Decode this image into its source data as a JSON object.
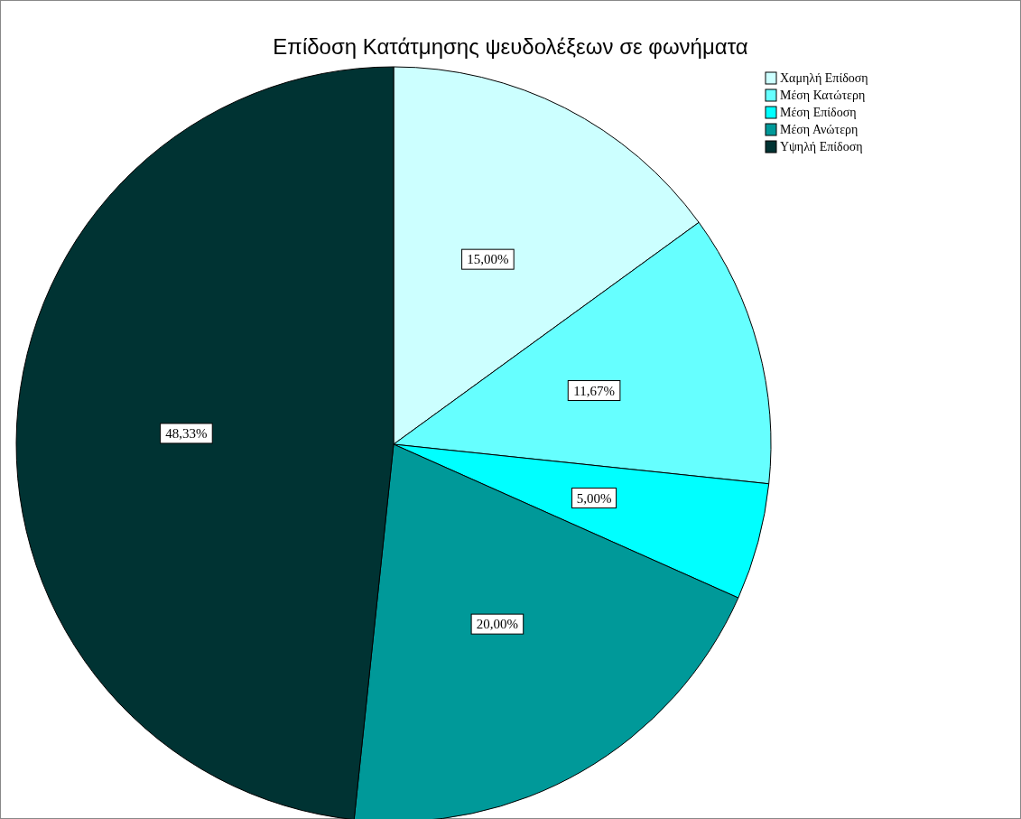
{
  "chart_data": {
    "type": "pie",
    "title": "Επίδοση Κατάτμησης ψευδολέξεων σε φωνήματα",
    "categories": [
      "Χαμηλή Επίδοση",
      "Μέση Κατώτερη",
      "Μέση Επίδοση",
      "Μέση Ανώτερη",
      "Υψηλή Επίδοση"
    ],
    "values": [
      15,
      11.67,
      5,
      20,
      48.33
    ],
    "colors": [
      "#ccffff",
      "#66ffff",
      "#00ffff",
      "#009999",
      "#003333"
    ],
    "value_labels": [
      "15,00%",
      "11,67%",
      "5,00%",
      "20,00%",
      "48,33%"
    ],
    "legend": "top right"
  }
}
